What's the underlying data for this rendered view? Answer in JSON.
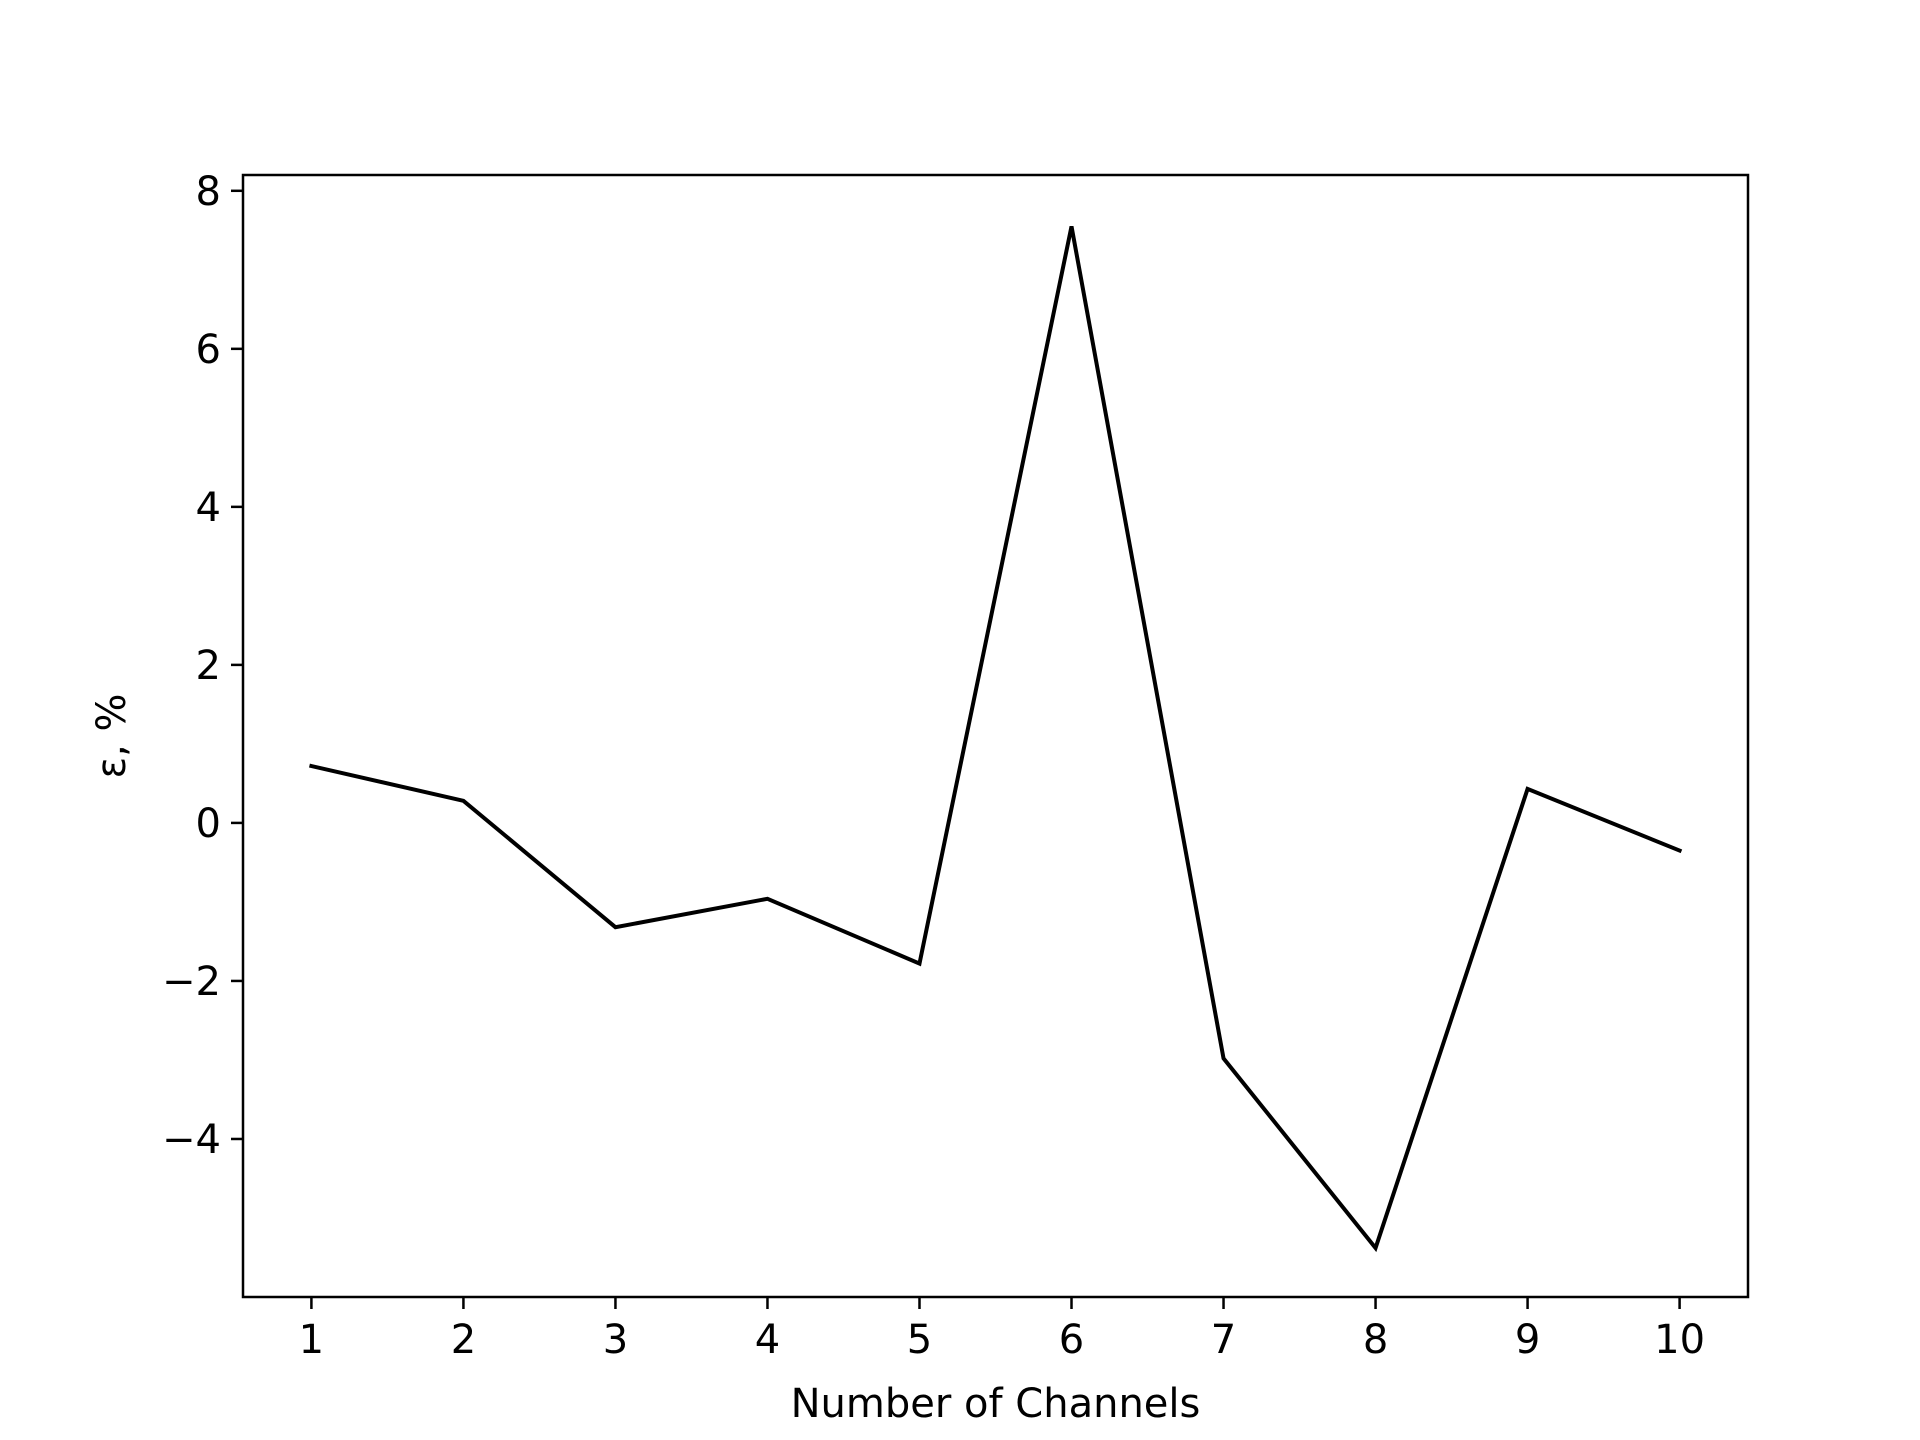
{
  "chart_data": {
    "type": "line",
    "title": "",
    "xlabel": "Number of Channels",
    "ylabel": "ε, %",
    "x": [
      1,
      2,
      3,
      4,
      5,
      6,
      7,
      8,
      9,
      10
    ],
    "series": [
      {
        "values": [
          0.72,
          0.28,
          -1.32,
          -0.96,
          -1.78,
          7.55,
          -2.98,
          -5.38,
          0.43,
          -0.35
        ],
        "color": "#000000"
      }
    ],
    "xlim": [
      0.55,
      10.45
    ],
    "ylim": [
      -6.0,
      8.2
    ],
    "x_ticks": [
      1,
      2,
      3,
      4,
      5,
      6,
      7,
      8,
      9,
      10
    ],
    "x_tick_labels": [
      "1",
      "2",
      "3",
      "4",
      "5",
      "6",
      "7",
      "8",
      "9",
      "10"
    ],
    "y_ticks": [
      -4,
      -2,
      0,
      2,
      4,
      6,
      8
    ],
    "y_tick_labels": [
      "−4",
      "−2",
      "0",
      "2",
      "4",
      "6",
      "8"
    ],
    "grid": false,
    "legend": "none"
  }
}
